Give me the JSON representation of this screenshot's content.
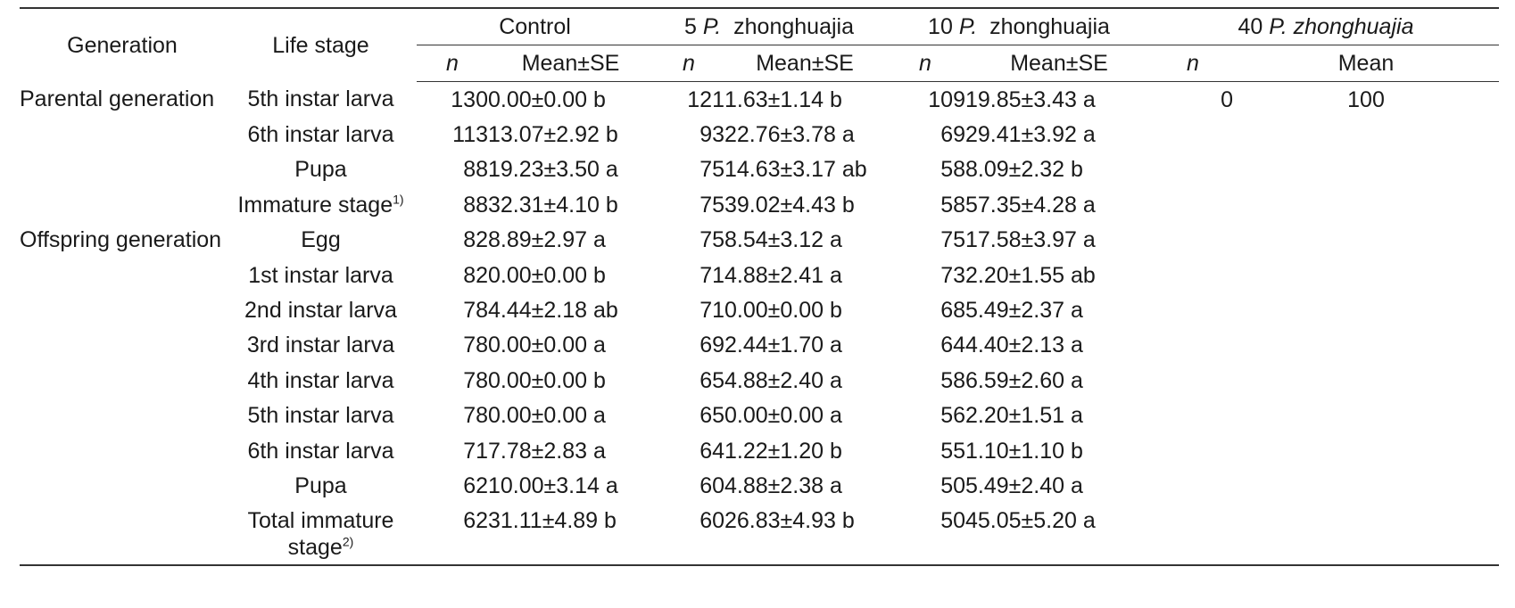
{
  "header": {
    "generation": "Generation",
    "life_stage": "Life stage",
    "groups": [
      {
        "prefix": "",
        "italic": "",
        "suffix": "Control"
      },
      {
        "prefix": "5 ",
        "italic": "P.",
        "suffix": "  zhonghuajia"
      },
      {
        "prefix": "10 ",
        "italic": "P.",
        "suffix": "  zhonghuajia"
      },
      {
        "prefix": "40 ",
        "italic": "P.",
        "suffix": " zhonghuajia"
      }
    ],
    "n": "n",
    "mean_se": "Mean±SE",
    "mean": "Mean"
  },
  "rows": [
    {
      "generation": "Parental generation",
      "stage": "5th instar larva",
      "stage_sup": "",
      "c_n": "130",
      "c_m": "0.00±0.00 b",
      "p5_n": "121",
      "p5_m": "1.63±1.14 b",
      "p10_n": "109",
      "p10_m": "19.85±3.43 a",
      "p40_n": "0",
      "p40_m": "100"
    },
    {
      "generation": "",
      "stage": "6th instar larva",
      "stage_sup": "",
      "c_n": "113",
      "c_m": "13.07±2.92 b",
      "p5_n": "93",
      "p5_m": "22.76±3.78 a",
      "p10_n": "69",
      "p10_m": "29.41±3.92 a",
      "p40_n": "",
      "p40_m": ""
    },
    {
      "generation": "",
      "stage": "Pupa",
      "stage_sup": "",
      "c_n": "88",
      "c_m": "19.23±3.50 a",
      "p5_n": "75",
      "p5_m": "14.63±3.17 ab",
      "p10_n": "58",
      "p10_m": "8.09±2.32 b",
      "p40_n": "",
      "p40_m": ""
    },
    {
      "generation": "",
      "stage": "Immature stage",
      "stage_sup": "1)",
      "c_n": "88",
      "c_m": "32.31±4.10 b",
      "p5_n": "75",
      "p5_m": "39.02±4.43 b",
      "p10_n": "58",
      "p10_m": "57.35±4.28 a",
      "p40_n": "",
      "p40_m": ""
    },
    {
      "generation": "Offspring generation",
      "stage": "Egg",
      "stage_sup": "",
      "c_n": "82",
      "c_m": "8.89±2.97 a",
      "p5_n": "75",
      "p5_m": "8.54±3.12 a",
      "p10_n": "75",
      "p10_m": "17.58±3.97 a",
      "p40_n": "",
      "p40_m": ""
    },
    {
      "generation": "",
      "stage": "1st instar larva",
      "stage_sup": "",
      "c_n": "82",
      "c_m": "0.00±0.00 b",
      "p5_n": "71",
      "p5_m": "4.88±2.41 a",
      "p10_n": "73",
      "p10_m": "2.20±1.55 ab",
      "p40_n": "",
      "p40_m": ""
    },
    {
      "generation": "",
      "stage": "2nd instar larva",
      "stage_sup": "",
      "c_n": "78",
      "c_m": "4.44±2.18 ab",
      "p5_n": "71",
      "p5_m": "0.00±0.00 b",
      "p10_n": "68",
      "p10_m": "5.49±2.37 a",
      "p40_n": "",
      "p40_m": ""
    },
    {
      "generation": "",
      "stage": "3rd instar larva",
      "stage_sup": "",
      "c_n": "78",
      "c_m": "0.00±0.00 a",
      "p5_n": "69",
      "p5_m": "2.44±1.70 a",
      "p10_n": "64",
      "p10_m": "4.40±2.13 a",
      "p40_n": "",
      "p40_m": ""
    },
    {
      "generation": "",
      "stage": "4th instar larva",
      "stage_sup": "",
      "c_n": "78",
      "c_m": "0.00±0.00 b",
      "p5_n": "65",
      "p5_m": "4.88±2.40 a",
      "p10_n": "58",
      "p10_m": "6.59±2.60 a",
      "p40_n": "",
      "p40_m": ""
    },
    {
      "generation": "",
      "stage": "5th instar larva",
      "stage_sup": "",
      "c_n": "78",
      "c_m": "0.00±0.00 a",
      "p5_n": "65",
      "p5_m": "0.00±0.00 a",
      "p10_n": "56",
      "p10_m": "2.20±1.51 a",
      "p40_n": "",
      "p40_m": ""
    },
    {
      "generation": "",
      "stage": "6th instar larva",
      "stage_sup": "",
      "c_n": "71",
      "c_m": "7.78±2.83 a",
      "p5_n": "64",
      "p5_m": "1.22±1.20 b",
      "p10_n": "55",
      "p10_m": "1.10±1.10 b",
      "p40_n": "",
      "p40_m": ""
    },
    {
      "generation": "",
      "stage": "Pupa",
      "stage_sup": "",
      "c_n": "62",
      "c_m": "10.00±3.14 a",
      "p5_n": "60",
      "p5_m": "4.88±2.38 a",
      "p10_n": "50",
      "p10_m": "5.49±2.40 a",
      "p40_n": "",
      "p40_m": ""
    }
  ],
  "last_row": {
    "stage_line1": "Total immature",
    "stage_line2": "stage",
    "stage_sup": "2)",
    "c_n": "62",
    "c_m": "31.11±4.89 b",
    "p5_n": "60",
    "p5_m": "26.83±4.93 b",
    "p10_n": "50",
    "p10_m": "45.05±5.20 a",
    "p40_n": "",
    "p40_m": ""
  }
}
